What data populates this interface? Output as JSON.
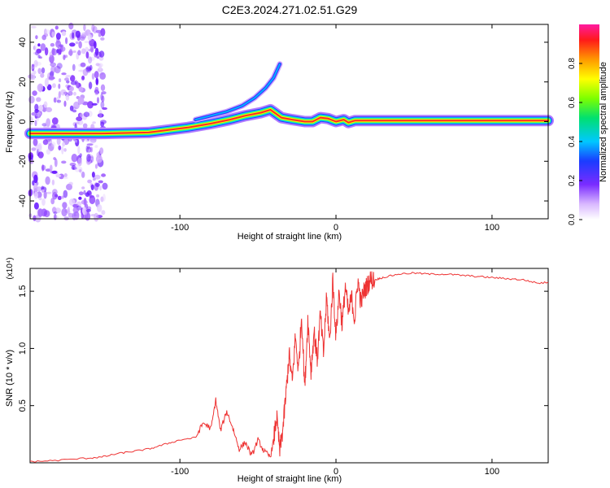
{
  "title": "C2E3.2024.271.02.51.G29",
  "chart_data": [
    {
      "type": "heatmap",
      "xlabel": "Height of straight line (km)",
      "ylabel": "Frequency (Hz)",
      "xlim": [
        -196,
        136
      ],
      "ylim": [
        -49,
        49
      ],
      "xticks": [
        -100,
        0,
        100
      ],
      "yticks": [
        -40,
        -20,
        0,
        20,
        40
      ],
      "colorbar": {
        "label": "Normalized spectral amplitude",
        "range": [
          0,
          1
        ],
        "ticks": [
          "0.0",
          "0.2",
          "0.4",
          "0.6",
          "0.8"
        ]
      },
      "ridge": {
        "x": [
          -196,
          -175,
          -160,
          -150,
          -120,
          -95,
          -80,
          -68,
          -58,
          -48,
          -42,
          -35,
          -28,
          -20,
          -15,
          -10,
          -5,
          0,
          5,
          8,
          12,
          136
        ],
        "y": [
          -6,
          -6,
          -6,
          -6,
          -5.5,
          -3,
          -1,
          1,
          3,
          4.5,
          6,
          2,
          1,
          0,
          0,
          2,
          1.5,
          0,
          1,
          -0.5,
          0.5,
          0.5
        ]
      },
      "upper_branch": {
        "x": [
          -90,
          -80,
          -70,
          -60,
          -52,
          -45,
          -40,
          -36
        ],
        "y": [
          1,
          3,
          5,
          8,
          12,
          17,
          22,
          29
        ]
      },
      "noise_band_x": [
        -196,
        -148
      ]
    },
    {
      "type": "line",
      "xlabel": "Height of straight line (km)",
      "ylabel": "SNR (10 * v/v)",
      "y_multiplier": "(x10⁴)",
      "xlim": [
        -196,
        136
      ],
      "ylim": [
        0,
        1.7
      ],
      "xticks": [
        -100,
        0,
        100
      ],
      "yticks": [
        0.5,
        1.0,
        1.5
      ],
      "ytick_labels": [
        "0.5",
        "1.0",
        "1.5"
      ],
      "color": "#ee3333",
      "x": [
        -196,
        -180,
        -160,
        -150,
        -140,
        -130,
        -120,
        -110,
        -100,
        -90,
        -85,
        -80,
        -77,
        -74,
        -70,
        -66,
        -62,
        -58,
        -54,
        -50,
        -46,
        -42,
        -40,
        -38,
        -36,
        -34,
        -32,
        -30,
        -28,
        -26,
        -24,
        -22,
        -20,
        -18,
        -16,
        -14,
        -12,
        -10,
        -8,
        -6,
        -4,
        -2,
        0,
        2,
        4,
        6,
        8,
        10,
        12,
        14,
        16,
        18,
        20,
        22,
        25,
        30,
        40,
        50,
        60,
        70,
        80,
        90,
        100,
        110,
        120,
        130,
        136
      ],
      "y": [
        0.01,
        0.02,
        0.04,
        0.05,
        0.08,
        0.1,
        0.12,
        0.16,
        0.2,
        0.22,
        0.35,
        0.3,
        0.55,
        0.28,
        0.45,
        0.3,
        0.12,
        0.18,
        0.06,
        0.2,
        0.1,
        0.05,
        0.2,
        0.4,
        0.1,
        0.3,
        0.6,
        0.95,
        0.7,
        1.1,
        0.8,
        1.3,
        0.65,
        1.25,
        0.8,
        1.15,
        0.9,
        1.3,
        0.95,
        1.45,
        1.05,
        1.6,
        1.1,
        1.5,
        1.2,
        1.55,
        1.3,
        1.45,
        1.25,
        1.6,
        1.4,
        1.5,
        1.55,
        1.6,
        1.6,
        1.62,
        1.65,
        1.66,
        1.65,
        1.65,
        1.64,
        1.63,
        1.62,
        1.61,
        1.6,
        1.57,
        1.58
      ]
    }
  ]
}
